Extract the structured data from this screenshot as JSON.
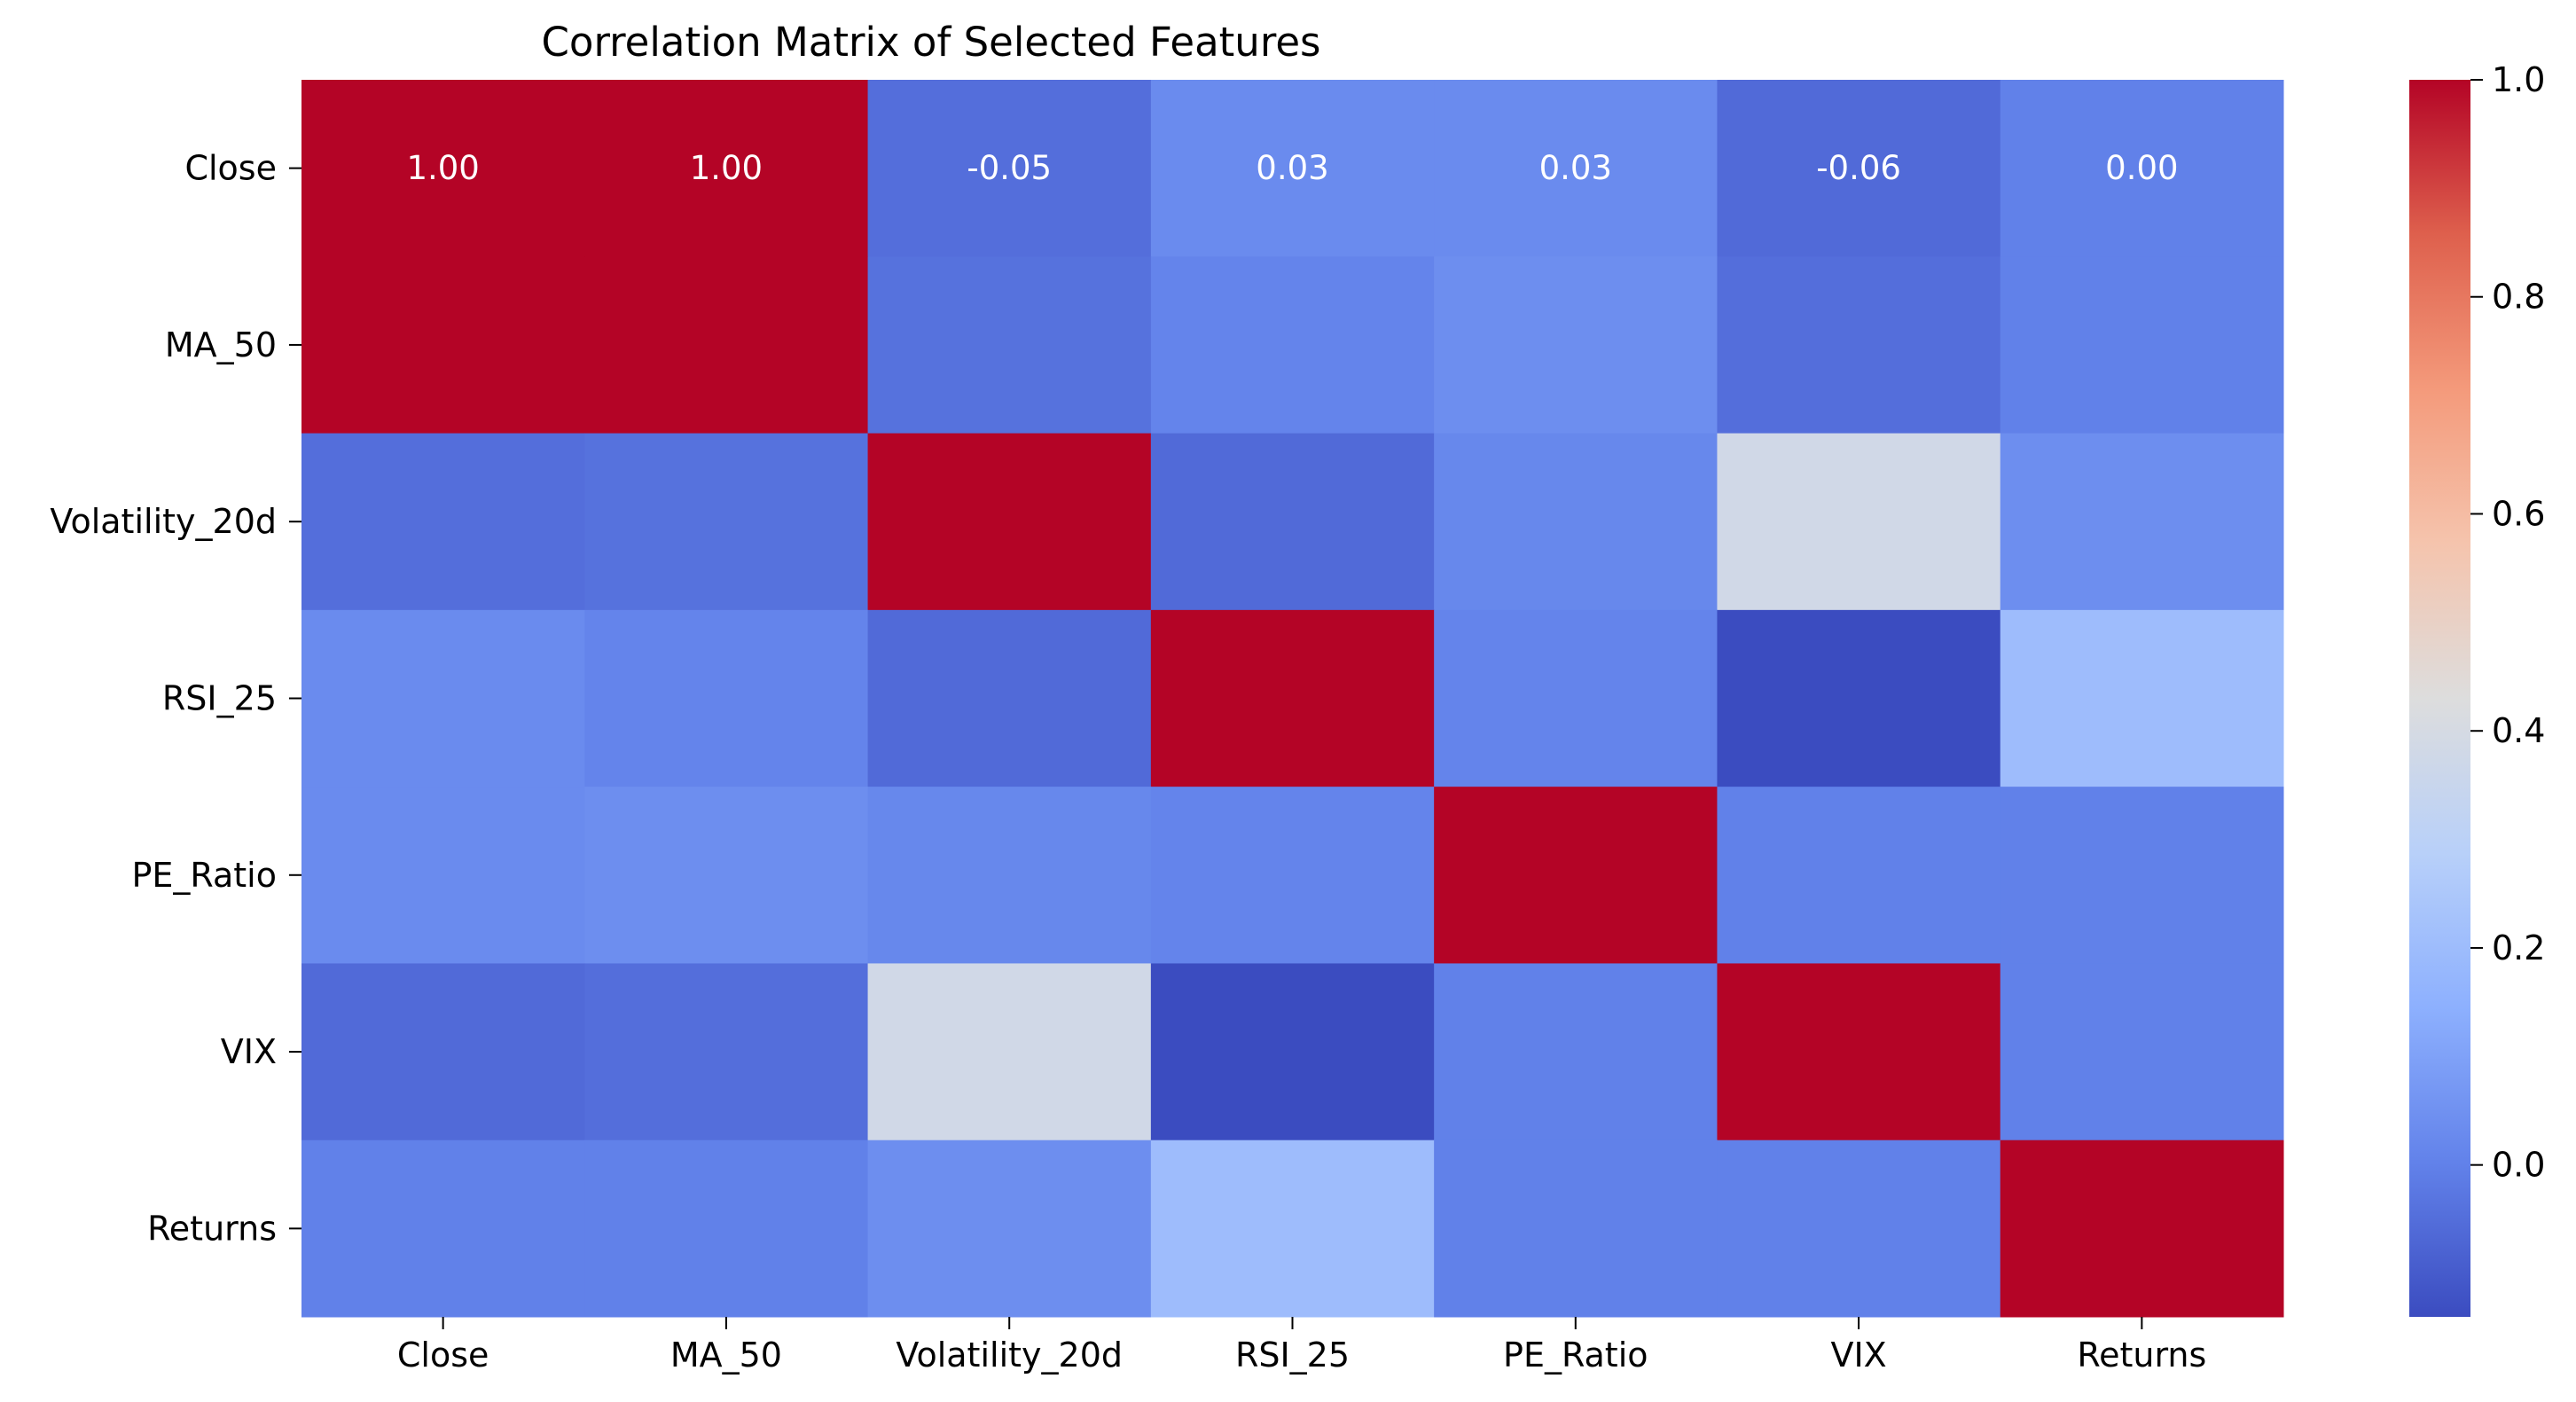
{
  "chart_data": {
    "type": "heatmap",
    "title": "Correlation Matrix of Selected Features",
    "xlabel": "",
    "ylabel": "",
    "x_categories": [
      "Close",
      "MA_50",
      "Volatility_20d",
      "RSI_25",
      "PE_Ratio",
      "VIX",
      "Returns"
    ],
    "y_categories": [
      "Close",
      "MA_50",
      "Volatility_20d",
      "RSI_25",
      "PE_Ratio",
      "VIX",
      "Returns"
    ],
    "values": [
      [
        1.0,
        1.0,
        -0.05,
        0.03,
        0.03,
        -0.06,
        0.0
      ],
      [
        1.0,
        1.0,
        -0.04,
        0.01,
        0.04,
        -0.05,
        0.0
      ],
      [
        -0.05,
        -0.04,
        1.0,
        -0.06,
        0.02,
        0.38,
        0.04
      ],
      [
        0.03,
        0.01,
        -0.06,
        1.0,
        0.01,
        -0.14,
        0.2
      ],
      [
        0.03,
        0.04,
        0.02,
        0.01,
        1.0,
        0.0,
        0.0
      ],
      [
        -0.06,
        -0.05,
        0.38,
        -0.14,
        0.0,
        1.0,
        0.0
      ],
      [
        0.0,
        0.0,
        0.04,
        0.2,
        0.0,
        0.0,
        1.0
      ]
    ],
    "annotated_row": 0,
    "annotation_labels": [
      "1.00",
      "1.00",
      "-0.05",
      "0.03",
      "0.03",
      "-0.06",
      "0.00"
    ],
    "colormap": "coolwarm",
    "colorbar": {
      "vmin": -0.14,
      "vmax": 1.0,
      "ticks": [
        0.0,
        0.2,
        0.4,
        0.6,
        0.8,
        1.0
      ],
      "tick_labels": [
        "0.0",
        "0.2",
        "0.4",
        "0.6",
        "0.8",
        "1.0"
      ]
    },
    "grid": false,
    "legend": "colorbar-right"
  }
}
